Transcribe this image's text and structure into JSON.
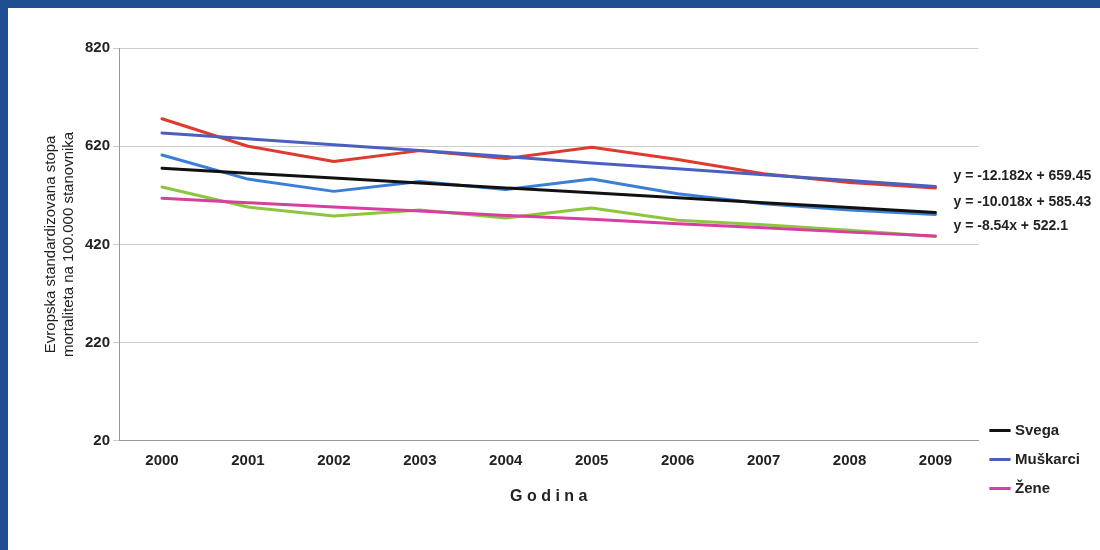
{
  "chart_data": {
    "type": "line",
    "xlabel": "G o d i n a",
    "ylabel": "Evropska standardizovana stopa mortaliteta na 100.000 stanovnika",
    "categories": [
      "2000",
      "2001",
      "2002",
      "2003",
      "2004",
      "2005",
      "2006",
      "2007",
      "2008",
      "2009"
    ],
    "series": [
      {
        "color": "#e03a2f",
        "values": [
          676,
          620,
          589,
          611,
          595,
          618,
          593,
          564,
          546,
          535
        ]
      },
      {
        "color": "#3a7fd5",
        "values": [
          602,
          553,
          528,
          548,
          532,
          553,
          523,
          503,
          490,
          481
        ]
      },
      {
        "color": "#8cc63f",
        "values": [
          537,
          496,
          478,
          490,
          474,
          494,
          469,
          460,
          449,
          436
        ]
      },
      {
        "name": "Svega",
        "color": "#111111",
        "values": [
          575,
          565,
          555,
          545,
          535,
          525,
          515,
          505,
          495,
          485
        ]
      },
      {
        "name": "Muškarci",
        "color": "#4a5fc0",
        "values": [
          647,
          635,
          623,
          611,
          599,
          586,
          574,
          562,
          550,
          538
        ]
      },
      {
        "name": "Žene",
        "color": "#d63fa0",
        "values": [
          514,
          505,
          496,
          488,
          479,
          471,
          462,
          454,
          445,
          437
        ]
      }
    ],
    "ylim": [
      20,
      820
    ],
    "yticks": [
      20,
      220,
      420,
      620,
      820
    ],
    "grid": "y",
    "legend": "bottom right",
    "marker": "none",
    "line_style": "solid",
    "annotations": [
      {
        "text": "y = -12.182x + 659.45",
        "x": "2009",
        "y": 538
      },
      {
        "text": "y = -10.018x + 585.43",
        "x": "2009",
        "y": 485
      },
      {
        "text": "y = -8.54x + 522.1",
        "x": "2009",
        "y": 437
      }
    ]
  }
}
